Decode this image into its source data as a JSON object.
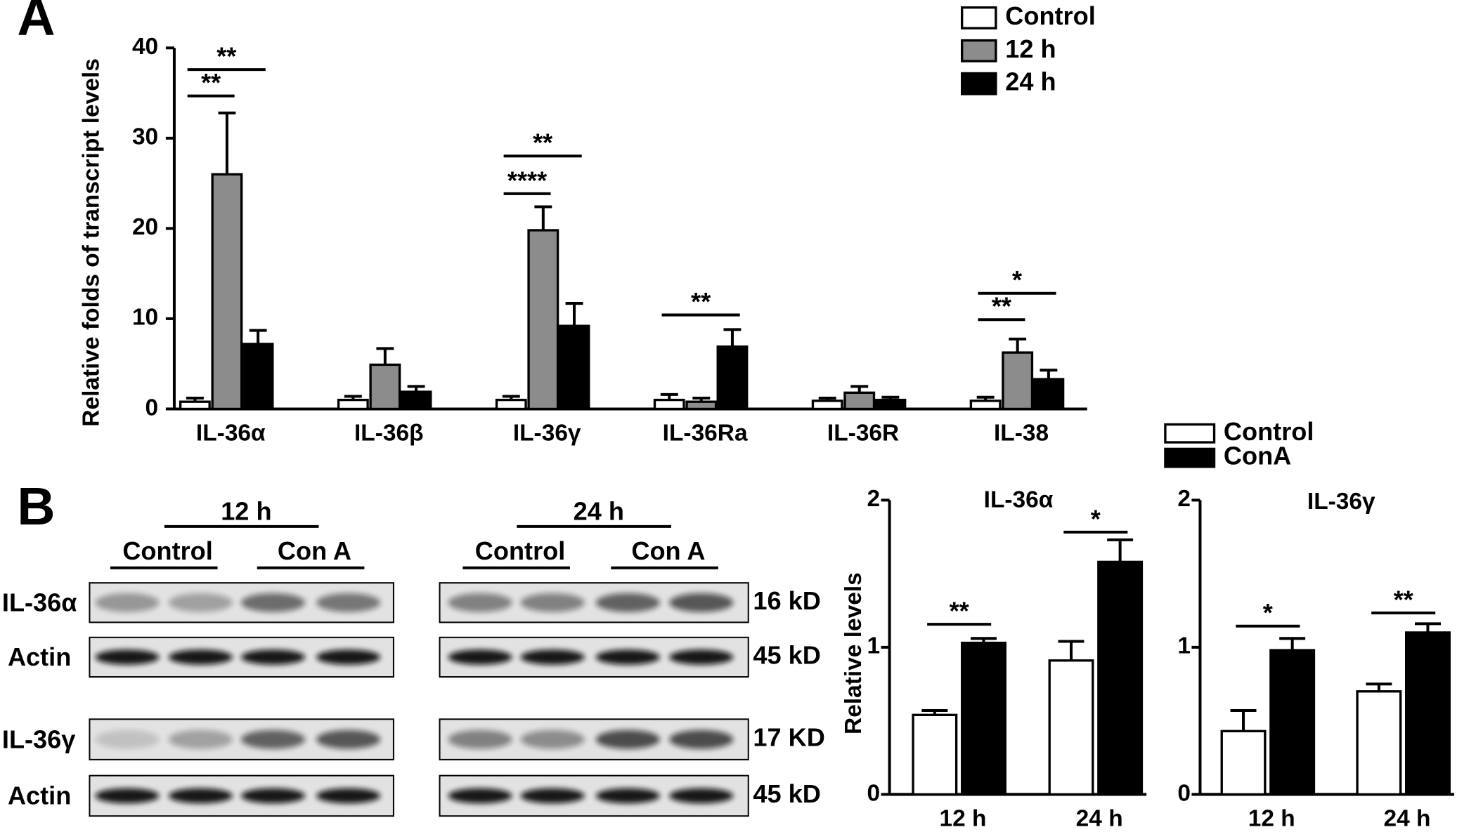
{
  "panel_labels": [
    "A",
    "B"
  ],
  "chart_data": [
    {
      "type": "bar",
      "ylabel": "Relative folds of transcript levels",
      "categories": [
        "IL-36α",
        "IL-36β",
        "IL-36γ",
        "IL-36Ra",
        "IL-36R",
        "IL-38"
      ],
      "series": [
        {
          "name": "Control",
          "color": "#ffffff",
          "values": [
            0.8,
            1.0,
            1.0,
            1.0,
            0.9,
            0.9
          ],
          "errors": [
            0.4,
            0.4,
            0.4,
            0.6,
            0.3,
            0.4
          ]
        },
        {
          "name": "12 h",
          "color": "#8c8c8c",
          "values": [
            26.0,
            4.9,
            19.8,
            0.8,
            1.8,
            6.25
          ],
          "errors": [
            6.8,
            1.8,
            2.6,
            0.4,
            0.7,
            1.5
          ]
        },
        {
          "name": "24 h",
          "color": "#000000",
          "values": [
            7.2,
            1.9,
            9.2,
            6.9,
            1.0,
            3.3
          ],
          "errors": [
            1.5,
            0.6,
            2.5,
            1.9,
            0.3,
            1.0
          ]
        }
      ],
      "ylim": [
        0,
        40
      ],
      "yticks": [
        0,
        10,
        20,
        30,
        40
      ],
      "annotations": [
        "**",
        "**",
        "**",
        "****",
        "**",
        "*",
        "**"
      ]
    },
    {
      "type": "bar",
      "title": "IL-36α",
      "ylabel": "Relative levels",
      "categories": [
        "12 h",
        "24 h"
      ],
      "series": [
        {
          "name": "Control",
          "color": "#ffffff",
          "values": [
            0.54,
            0.91
          ],
          "errors": [
            0.03,
            0.13
          ]
        },
        {
          "name": "ConA",
          "color": "#000000",
          "values": [
            1.03,
            1.58
          ],
          "errors": [
            0.03,
            0.15
          ]
        }
      ],
      "ylim": [
        0,
        2
      ],
      "yticks": [
        0,
        1,
        2
      ],
      "annotations": [
        "**",
        "*"
      ]
    },
    {
      "type": "bar",
      "title": "IL-36γ",
      "categories": [
        "12 h",
        "24 h"
      ],
      "series": [
        {
          "color": "#ffffff",
          "values": [
            0.43,
            0.7
          ],
          "errors": [
            0.14,
            0.05
          ]
        },
        {
          "color": "#000000",
          "values": [
            0.98,
            1.1
          ],
          "errors": [
            0.08,
            0.06
          ]
        }
      ],
      "ylim": [
        0,
        2
      ],
      "yticks": [
        0,
        1,
        2
      ],
      "annotations": [
        "*",
        "**"
      ]
    }
  ],
  "blots": {
    "groups": [
      {
        "time": "12 h",
        "conditions": [
          "Control",
          "Con A"
        ]
      },
      {
        "time": "24 h",
        "conditions": [
          "Control",
          "Con A"
        ]
      }
    ],
    "rows": [
      "IL-36α",
      "Actin",
      "IL-36γ",
      "Actin"
    ],
    "sizes": [
      "16 kD",
      "45 kD",
      "17 KD",
      "45 kD"
    ]
  }
}
